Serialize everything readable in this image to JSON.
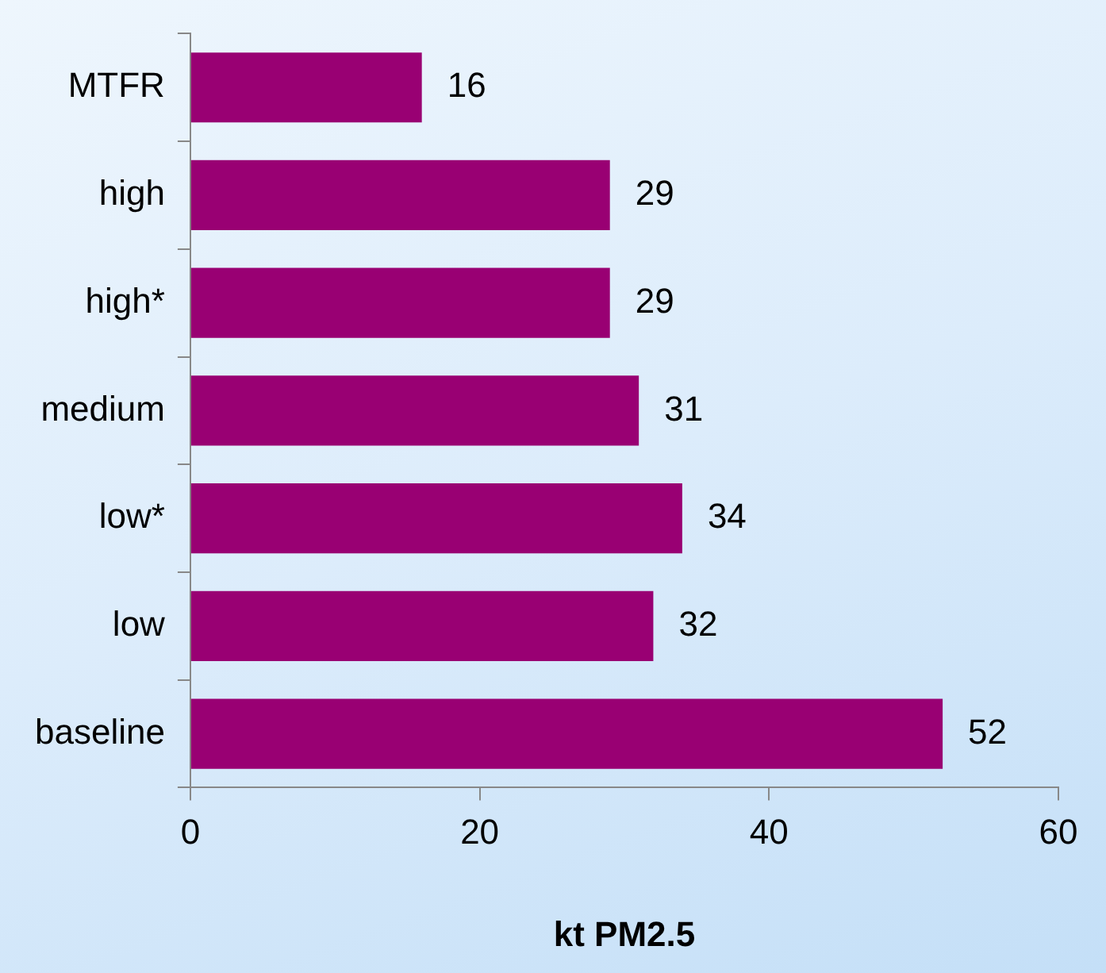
{
  "chart_data": {
    "type": "bar",
    "orientation": "horizontal",
    "xlabel": "kt PM2.5",
    "categories": [
      "MTFR",
      "high",
      "high*",
      "medium",
      "low*",
      "low",
      "baseline"
    ],
    "values": [
      16,
      29,
      29,
      31,
      34,
      32,
      52
    ],
    "color": "#990073",
    "xlim": [
      0,
      60
    ],
    "xticks": [
      0,
      20,
      40,
      60
    ],
    "data_labels": true
  }
}
